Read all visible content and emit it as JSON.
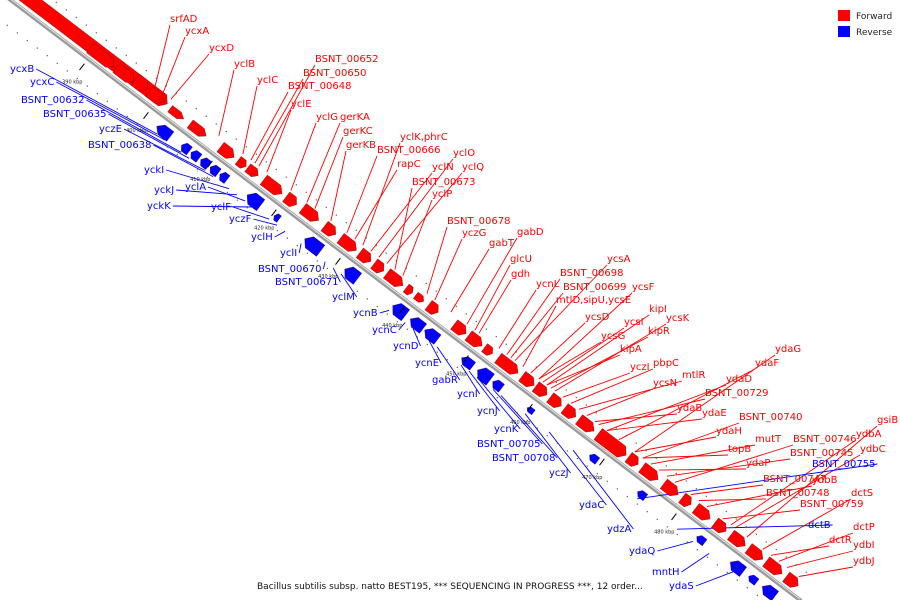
{
  "legend": {
    "forward": {
      "label": "Forward",
      "color": "#ff0000"
    },
    "reverse": {
      "label": "Reverse",
      "color": "#0000ff"
    }
  },
  "caption": "Bacillus subtilis subsp. natto BEST195, *** SEQUENCING IN PROGRESS ***, 12 order...",
  "axis_color": "#9a9a9a",
  "ticks": [
    "390 kbp",
    "400 kbp",
    "410 kbp",
    "420 kbp",
    "430 kbp",
    "440 kbp",
    "450 kbp",
    "460 kbp",
    "470 kbp",
    "480 kbp"
  ],
  "forward_labels": [
    "srfAD",
    "ycxA",
    "ycxD",
    "yclB",
    "yclC",
    "BSNT_00652",
    "BSNT_00650",
    "BSNT_00648",
    "yclE",
    "yclG",
    "gerKA",
    "gerKC",
    "gerKB",
    "yclK,phrC",
    "BSNT_00666",
    "yclO",
    "rapC",
    "yclN",
    "yclQ",
    "BSNT_00673",
    "yclP",
    "BSNT_00678",
    "yczG",
    "gabD",
    "gabT",
    "glcU",
    "gdh",
    "ycsA",
    "ycnL",
    "BSNT_00698",
    "BSNT_00699",
    "ycsF",
    "mtlD,sipU,ycsE",
    "kipI",
    "ycsD",
    "ycsI",
    "ycsK",
    "ycsG",
    "kipR",
    "kipA",
    "pbpC",
    "yczI",
    "ycsN",
    "mtlR",
    "ydaG",
    "ydaF",
    "ydaD",
    "BSNT_00729",
    "ydaB",
    "ydaE",
    "BSNT_00740",
    "ydaH",
    "mutT",
    "topB",
    "ydaP",
    "BSNT_00746",
    "BSNT_00745",
    "gsiB",
    "ydbA",
    "ydbC",
    "BSNT_00747",
    "ydbB",
    "BSNT_00748",
    "dctS",
    "BSNT_00759",
    "dctP",
    "dctR",
    "ydbI",
    "ydbJ"
  ],
  "reverse_labels": [
    "ycxB",
    "ycxC",
    "BSNT_00632",
    "BSNT_00635",
    "yczE",
    "BSNT_00638",
    "yckI",
    "yckJ",
    "yclA",
    "yckK",
    "yclF",
    "yczF",
    "yclH",
    "yclI",
    "BSNT_00670",
    "BSNT_00671",
    "yclM",
    "ycnB",
    "ycnC",
    "ycnD",
    "ycnE",
    "gabR",
    "ycnI",
    "ycnJ",
    "ycnK",
    "BSNT_00705",
    "BSNT_00708",
    "yczJ",
    "ydaC",
    "ydzA",
    "BSNT_00755",
    "dctB",
    "ydaQ",
    "mntH",
    "ydaS"
  ]
}
